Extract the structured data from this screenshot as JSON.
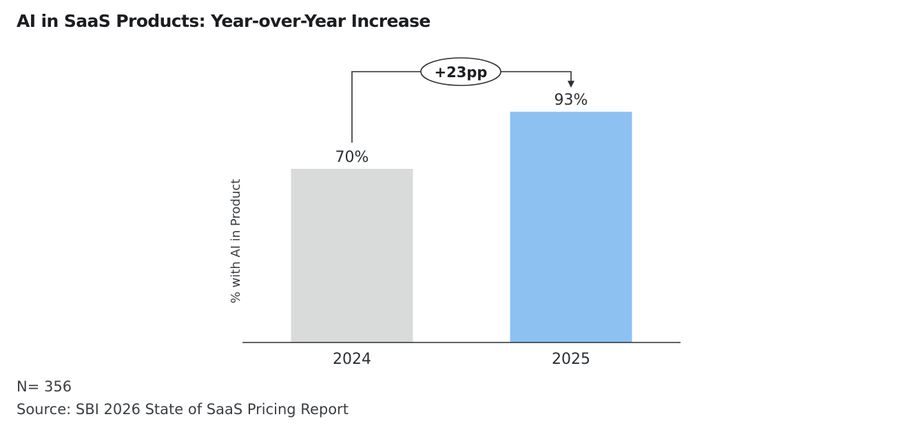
{
  "title": "AI in SaaS Products: Year-over-Year Increase",
  "footnotes": {
    "sample": "N= 356",
    "source": "Source: SBI 2026 State of SaaS Pricing Report"
  },
  "chart_data": {
    "type": "bar",
    "categories": [
      "2024",
      "2025"
    ],
    "values": [
      70,
      93
    ],
    "value_labels": [
      "70%",
      "93%"
    ],
    "colors": [
      "#d9dbdb",
      "#8dc1f2"
    ],
    "ylabel": "% with AI in Product",
    "xlabel": "",
    "ylim": [
      0,
      100
    ],
    "grid": false,
    "legend": "none",
    "annotation": {
      "label": "+23pp",
      "from": "2024",
      "to": "2025"
    }
  }
}
